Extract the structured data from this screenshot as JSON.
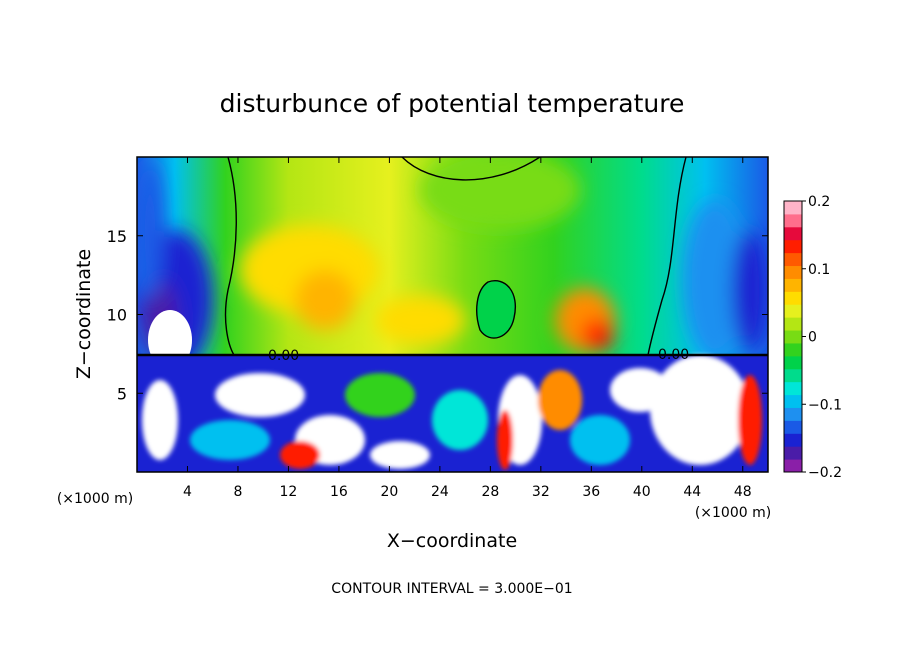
{
  "chart_data": {
    "type": "heatmap",
    "title": "disturbunce of potential temperature",
    "xlabel": "X−coordinate",
    "ylabel": "Z−coordinate",
    "x_unit_label": "(×1000 m)",
    "z_unit_label": "(×1000 m)",
    "footer": "CONTOUR INTERVAL = 3.000E−01",
    "xlim": [
      0,
      50
    ],
    "ylim": [
      0,
      20
    ],
    "x_ticks": [
      "4",
      "8",
      "12",
      "16",
      "20",
      "24",
      "28",
      "32",
      "36",
      "40",
      "44",
      "48"
    ],
    "y_ticks": [
      "5",
      "10",
      "15"
    ],
    "contour_labels": [
      "0.00",
      "0.00"
    ],
    "colorbar": {
      "range": [
        -0.2,
        0.2
      ],
      "tick_labels": [
        "0.2",
        "0.1",
        "0",
        "−0.1",
        "−0.2"
      ],
      "colors": [
        "#8a1fa8",
        "#4a1ca8",
        "#1a22d2",
        "#1a5ae6",
        "#1e90f0",
        "#00c0f0",
        "#00e6d8",
        "#00dc8c",
        "#00d24a",
        "#32d21e",
        "#78dc14",
        "#b4e614",
        "#e6f01e",
        "#ffdc00",
        "#ffb400",
        "#ff8c00",
        "#ff5a00",
        "#ff1e00",
        "#e60a3c",
        "#ff6e8c",
        "#ffb4c8"
      ]
    },
    "grid": false,
    "legend": "right"
  }
}
